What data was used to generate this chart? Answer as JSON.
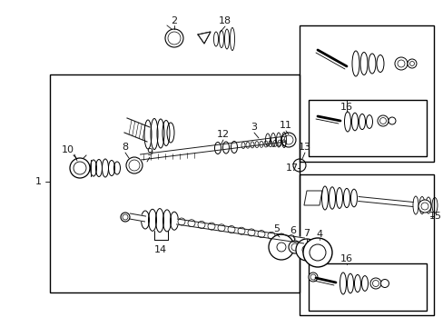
{
  "bg_color": "#ffffff",
  "line_color": "#1a1a1a",
  "fig_width": 4.89,
  "fig_height": 3.6,
  "dpi": 100,
  "font_size": 8.0
}
